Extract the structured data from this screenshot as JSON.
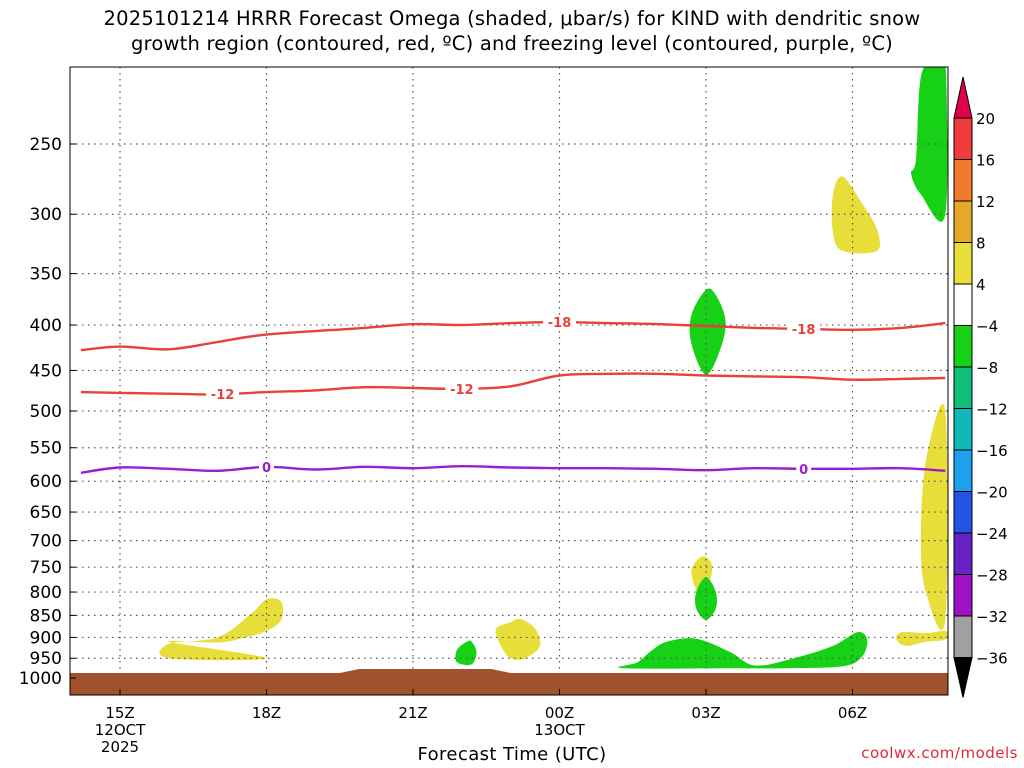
{
  "title": {
    "line1": "2025101214 HRRR Forecast Omega (shaded, μbar/s) for KIND with dendritic snow",
    "line2": "growth region (contoured, red, ºC) and freezing level (contoured, purple, ºC)"
  },
  "credit": "coolwx.com/models",
  "chart_data": {
    "type": "time-height cross section",
    "xlabel": "Forecast Time (UTC)",
    "ylabel": "",
    "y_scale": "log-pressure (hPa)",
    "ylim": [
      1000,
      200
    ],
    "xlim_hours": [
      14.2,
      31.9
    ],
    "grid": "dotted",
    "x_ticks": [
      {
        "hour": 15,
        "lines": [
          "15Z",
          "12OCT",
          "2025"
        ]
      },
      {
        "hour": 18,
        "lines": [
          "18Z"
        ]
      },
      {
        "hour": 21,
        "lines": [
          "21Z"
        ]
      },
      {
        "hour": 24,
        "lines": [
          "00Z",
          "13OCT"
        ]
      },
      {
        "hour": 27,
        "lines": [
          "03Z"
        ]
      },
      {
        "hour": 30,
        "lines": [
          "06Z"
        ]
      }
    ],
    "y_ticks": [
      "250",
      "300",
      "350",
      "400",
      "450",
      "500",
      "550",
      "600",
      "650",
      "700",
      "750",
      "800",
      "850",
      "900",
      "950",
      "1000"
    ],
    "contours": [
      {
        "label": "-18",
        "color": "#e8403c",
        "label_hours": [
          24,
          29
        ],
        "points": [
          [
            14.2,
            427
          ],
          [
            15,
            423
          ],
          [
            16,
            426
          ],
          [
            17,
            418
          ],
          [
            18,
            410
          ],
          [
            20,
            403
          ],
          [
            21,
            399
          ],
          [
            22,
            400
          ],
          [
            23,
            398
          ],
          [
            24,
            397
          ],
          [
            25,
            398
          ],
          [
            26,
            399
          ],
          [
            27,
            401
          ],
          [
            28,
            403
          ],
          [
            29,
            404
          ],
          [
            30,
            405
          ],
          [
            31,
            403
          ],
          [
            31.9,
            398
          ]
        ]
      },
      {
        "label": "-12",
        "color": "#e8403c",
        "label_hours": [
          17.1,
          22
        ],
        "points": [
          [
            14.2,
            476
          ],
          [
            15,
            477
          ],
          [
            16,
            478
          ],
          [
            17,
            479
          ],
          [
            18,
            476
          ],
          [
            19,
            474
          ],
          [
            20,
            470
          ],
          [
            21,
            471
          ],
          [
            22,
            472
          ],
          [
            23,
            469
          ],
          [
            24,
            456
          ],
          [
            25,
            454
          ],
          [
            26,
            454
          ],
          [
            27,
            456
          ],
          [
            28,
            457
          ],
          [
            29,
            458
          ],
          [
            30,
            461
          ],
          [
            31,
            460
          ],
          [
            31.9,
            459
          ]
        ]
      },
      {
        "label": "0",
        "color": "#9b1fc8",
        "label_hours": [
          18,
          29
        ],
        "points": [
          [
            14.2,
            587
          ],
          [
            15,
            579
          ],
          [
            16,
            581
          ],
          [
            17,
            584
          ],
          [
            18,
            578
          ],
          [
            19,
            582
          ],
          [
            20,
            578
          ],
          [
            21,
            580
          ],
          [
            22,
            577
          ],
          [
            23,
            579
          ],
          [
            24,
            580
          ],
          [
            25,
            580
          ],
          [
            26,
            581
          ],
          [
            27,
            583
          ],
          [
            28,
            580
          ],
          [
            29,
            581
          ],
          [
            30,
            581
          ],
          [
            31,
            580
          ],
          [
            31.9,
            584
          ]
        ]
      }
    ],
    "shaded_regions": [
      {
        "color": "#e8de3a",
        "points": [
          [
            16,
            910
          ],
          [
            17,
            912
          ],
          [
            17.5,
            902
          ],
          [
            18,
            885
          ],
          [
            18.3,
            860
          ],
          [
            18.3,
            820
          ],
          [
            18,
            815
          ],
          [
            17.7,
            845
          ],
          [
            17,
            900
          ],
          [
            16,
            915
          ],
          [
            16,
            950
          ],
          [
            18,
            950
          ]
        ]
      },
      {
        "color": "#e8de3a",
        "points": [
          [
            23,
            865
          ],
          [
            22.7,
            880
          ],
          [
            22.8,
            920
          ],
          [
            23,
            950
          ],
          [
            23.3,
            950
          ],
          [
            23.6,
            920
          ],
          [
            23.5,
            880
          ],
          [
            23.2,
            858
          ]
        ]
      },
      {
        "color": "#e8de3a",
        "points": [
          [
            26.9,
            730
          ],
          [
            26.7,
            760
          ],
          [
            26.9,
            810
          ],
          [
            27.1,
            770
          ],
          [
            27.1,
            740
          ]
        ]
      },
      {
        "color": "#e8de3a",
        "points": [
          [
            29.8,
            272
          ],
          [
            29.6,
            285
          ],
          [
            29.6,
            315
          ],
          [
            29.8,
            330
          ],
          [
            30.5,
            330
          ],
          [
            30.5,
            312
          ],
          [
            30.2,
            292
          ]
        ]
      },
      {
        "color": "#e8de3a",
        "points": [
          [
            31.9,
            500
          ],
          [
            31.5,
            570
          ],
          [
            31.4,
            700
          ],
          [
            31.5,
            800
          ],
          [
            31.9,
            860
          ]
        ]
      },
      {
        "color": "#e8de3a",
        "points": [
          [
            31.0,
            888
          ],
          [
            30.9,
            905
          ],
          [
            31.1,
            920
          ],
          [
            31.5,
            910
          ],
          [
            31.9,
            905
          ],
          [
            31.9,
            885
          ],
          [
            31.5,
            890
          ]
        ]
      },
      {
        "color": "#16d116",
        "points": [
          [
            31.7,
            200
          ],
          [
            31.4,
            210
          ],
          [
            31.3,
            260
          ],
          [
            31.2,
            270
          ],
          [
            31.4,
            285
          ],
          [
            31.9,
            300
          ],
          [
            31.9,
            200
          ]
        ]
      },
      {
        "color": "#16d116",
        "points": [
          [
            27.0,
            365
          ],
          [
            26.7,
            390
          ],
          [
            26.7,
            420
          ],
          [
            27.0,
            455
          ],
          [
            27.3,
            425
          ],
          [
            27.4,
            395
          ],
          [
            27.2,
            370
          ]
        ]
      },
      {
        "color": "#16d116",
        "points": [
          [
            27.0,
            770
          ],
          [
            26.8,
            800
          ],
          [
            26.8,
            835
          ],
          [
            27.0,
            860
          ],
          [
            27.2,
            835
          ],
          [
            27.2,
            800
          ]
        ]
      },
      {
        "color": "#16d116",
        "points": [
          [
            25.3,
            975
          ],
          [
            25.6,
            960
          ],
          [
            25.9,
            930
          ],
          [
            26.2,
            910
          ],
          [
            26.8,
            903
          ],
          [
            27.5,
            935
          ],
          [
            28,
            968
          ],
          [
            28.8,
            950
          ],
          [
            29.6,
            920
          ],
          [
            30.1,
            888
          ],
          [
            30.3,
            905
          ],
          [
            30.2,
            945
          ],
          [
            29.8,
            970
          ],
          [
            28.6,
            975
          ],
          [
            27.5,
            975
          ]
        ]
      },
      {
        "color": "#16d116",
        "points": [
          [
            22.1,
            910
          ],
          [
            21.9,
            930
          ],
          [
            21.9,
            960
          ],
          [
            22.2,
            965
          ],
          [
            22.3,
            935
          ],
          [
            22.2,
            910
          ]
        ]
      }
    ],
    "colorbar": {
      "tick_labels": [
        "20",
        "16",
        "12",
        "8",
        "4",
        "−4",
        "−8",
        "−12",
        "−16",
        "−20",
        "−24",
        "−28",
        "−32",
        "−36"
      ],
      "colors": [
        "#e1004d",
        "#f03c3c",
        "#f07b2c",
        "#e5a829",
        "#e8de3a",
        "#ffffff",
        "#16d116",
        "#0fbf7a",
        "#10b8b8",
        "#1ea0ef",
        "#2254e8",
        "#6622c4",
        "#9e11c4",
        "#a0a0a0",
        "#000000"
      ]
    },
    "surface_color": "#a0522d",
    "grid_color": "#555555"
  }
}
